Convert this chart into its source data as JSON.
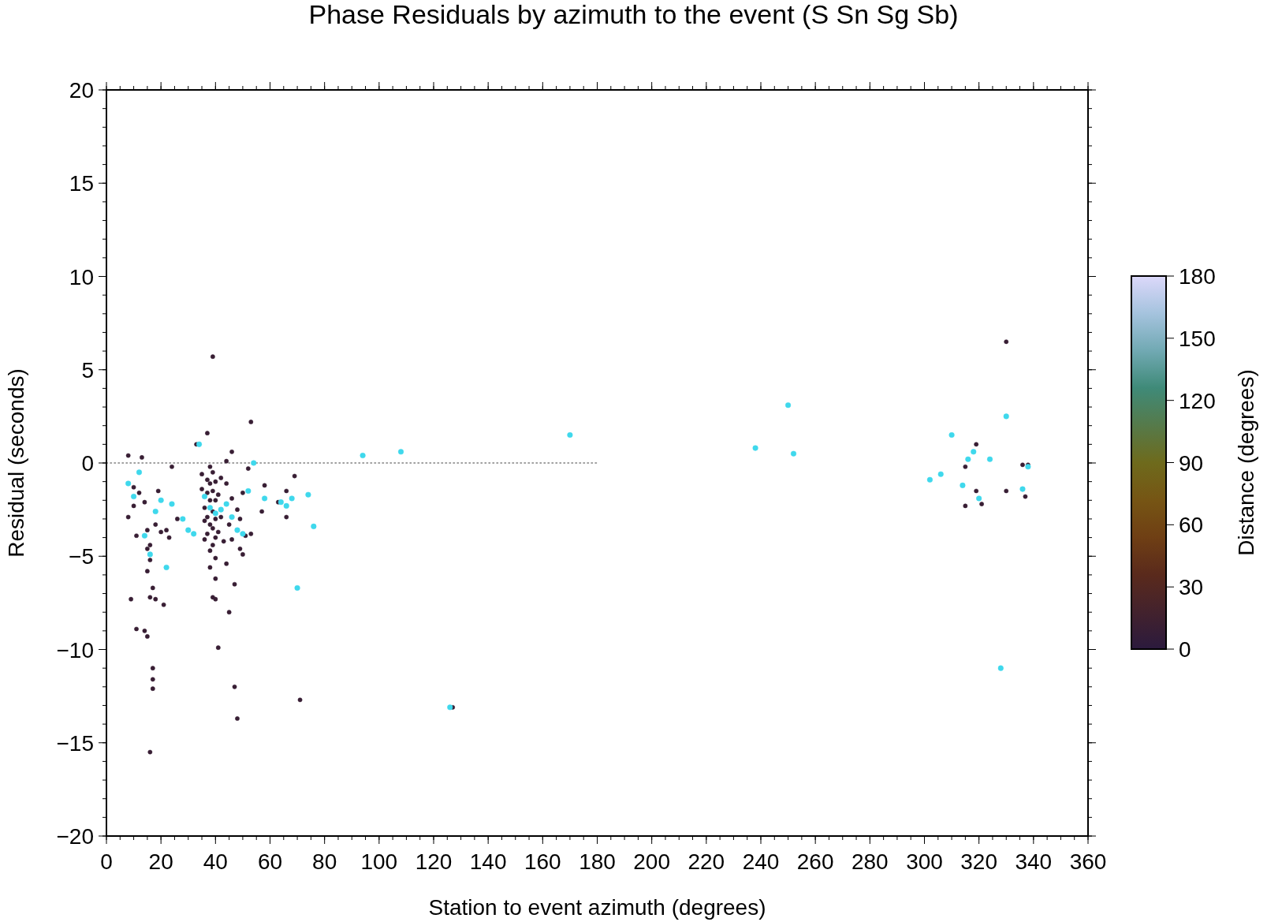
{
  "chart_data": {
    "type": "scatter",
    "title": "Phase Residuals by azimuth to the event (S Sn Sg Sb)",
    "xlabel": "Station to event azimuth (degrees)",
    "ylabel": "Residual (seconds)",
    "clabel": "Distance (degrees)",
    "xlim": [
      0,
      360
    ],
    "xticks": [
      0,
      20,
      40,
      60,
      80,
      100,
      120,
      140,
      160,
      180,
      200,
      220,
      240,
      260,
      280,
      300,
      320,
      340,
      360
    ],
    "ylim": [
      -20,
      20
    ],
    "yticks": [
      -20,
      -15,
      -10,
      -5,
      0,
      5,
      10,
      15,
      20
    ],
    "clim": [
      0,
      180
    ],
    "cticks": [
      0,
      30,
      60,
      90,
      120,
      150,
      180
    ],
    "grid": false,
    "marker": "circle",
    "series": [
      {
        "type": "line",
        "marker": "none",
        "line_style": "dotted",
        "color": "#808080",
        "x": [
          0,
          180
        ],
        "values": [
          0,
          0
        ]
      },
      {
        "x": [
          8,
          8,
          9,
          10,
          10,
          11,
          11,
          12,
          13,
          14,
          14,
          15,
          15,
          15,
          15,
          16,
          16,
          16,
          16,
          17,
          17,
          17,
          17,
          18,
          18,
          19,
          20,
          21,
          22,
          23,
          24,
          26,
          33,
          35,
          35,
          36,
          36,
          36,
          37,
          37,
          37,
          37,
          37,
          38,
          38,
          38,
          38,
          38,
          38,
          39,
          39,
          39,
          39,
          39,
          39,
          39,
          40,
          40,
          40,
          40,
          40,
          40,
          40,
          41,
          41,
          41,
          42,
          42,
          43,
          44,
          44,
          44,
          45,
          45,
          46,
          46,
          46,
          47,
          47,
          48,
          48,
          49,
          49,
          50,
          50,
          51,
          52,
          53,
          53,
          57,
          58,
          63,
          66,
          66,
          69,
          71,
          127,
          315,
          315,
          319,
          319,
          321,
          330,
          330,
          336,
          337,
          338
        ],
        "values": [
          0.4,
          -2.9,
          -7.3,
          -1.3,
          -2.3,
          -3.9,
          -8.9,
          -1.6,
          0.3,
          -9.0,
          -2.1,
          -3.6,
          -4.6,
          -5.8,
          -9.3,
          -4.4,
          -5.2,
          -7.2,
          -15.5,
          -11.0,
          -11.6,
          -12.1,
          -6.7,
          -7.3,
          -3.3,
          -1.5,
          -3.7,
          -7.6,
          -3.6,
          -4.0,
          -0.2,
          -3.0,
          1.0,
          -0.6,
          -1.4,
          -2.4,
          -3.1,
          -4.1,
          1.6,
          -0.9,
          -1.6,
          -2.9,
          -3.8,
          -0.2,
          -1.1,
          -2.0,
          -3.3,
          -4.7,
          -5.6,
          5.7,
          -0.5,
          -1.5,
          -2.6,
          -3.5,
          -4.4,
          -7.2,
          -1.0,
          -2.0,
          -3.0,
          -4.0,
          -5.1,
          -6.2,
          -7.3,
          -9.9,
          -1.7,
          -3.7,
          -0.8,
          -2.9,
          -4.2,
          0.1,
          -1.1,
          -5.4,
          -3.3,
          -8.0,
          0.6,
          -1.9,
          -4.1,
          -6.5,
          -12.0,
          -13.7,
          -2.5,
          -3.0,
          -4.6,
          -1.6,
          -4.9,
          -3.9,
          -0.3,
          2.2,
          -3.8,
          -2.6,
          -1.2,
          -2.1,
          -1.5,
          -2.9,
          -0.7,
          -12.7,
          -13.1,
          -0.2,
          -2.3,
          1.0,
          -1.5,
          -2.2,
          6.5,
          -1.5,
          -0.1,
          -1.8,
          -0.1
        ],
        "cvalues": [
          10,
          10,
          10,
          10,
          10,
          10,
          10,
          10,
          10,
          10,
          10,
          10,
          10,
          10,
          10,
          10,
          10,
          10,
          10,
          10,
          10,
          10,
          10,
          10,
          10,
          10,
          10,
          10,
          10,
          10,
          10,
          10,
          10,
          10,
          10,
          10,
          10,
          10,
          10,
          10,
          10,
          10,
          10,
          10,
          10,
          10,
          10,
          10,
          10,
          10,
          10,
          10,
          10,
          10,
          10,
          10,
          10,
          10,
          10,
          10,
          10,
          10,
          10,
          10,
          10,
          10,
          10,
          10,
          10,
          10,
          10,
          10,
          10,
          10,
          10,
          10,
          10,
          10,
          10,
          10,
          10,
          10,
          10,
          10,
          10,
          10,
          10,
          10,
          10,
          10,
          10,
          10,
          10,
          10,
          10,
          10,
          10,
          10,
          10,
          10,
          10,
          10,
          10,
          10,
          10,
          10,
          10
        ]
      },
      {
        "color": "#3fd8ec",
        "x": [
          8,
          10,
          12,
          14,
          16,
          18,
          20,
          22,
          24,
          28,
          30,
          32,
          34,
          36,
          38,
          40,
          42,
          44,
          46,
          48,
          50,
          52,
          54,
          58,
          64,
          66,
          68,
          70,
          74,
          76,
          94,
          108,
          126,
          170,
          238,
          250,
          252,
          302,
          306,
          310,
          314,
          316,
          318,
          320,
          324,
          328,
          330,
          336,
          338
        ],
        "values": [
          -1.1,
          -1.8,
          -0.5,
          -3.9,
          -4.9,
          -2.6,
          -2.0,
          -5.6,
          -2.2,
          -3.0,
          -3.6,
          -3.8,
          1.0,
          -1.8,
          -2.4,
          -2.7,
          -2.5,
          -2.2,
          -2.9,
          -3.6,
          -3.8,
          -1.5,
          0.0,
          -1.9,
          -2.1,
          -2.3,
          -1.9,
          -6.7,
          -1.7,
          -3.4,
          0.4,
          0.6,
          -13.1,
          1.5,
          0.8,
          3.1,
          0.5,
          -0.9,
          -0.6,
          1.5,
          -1.2,
          0.2,
          0.6,
          -1.9,
          0.2,
          -11.0,
          2.5,
          -1.4,
          -0.2
        ]
      }
    ]
  }
}
